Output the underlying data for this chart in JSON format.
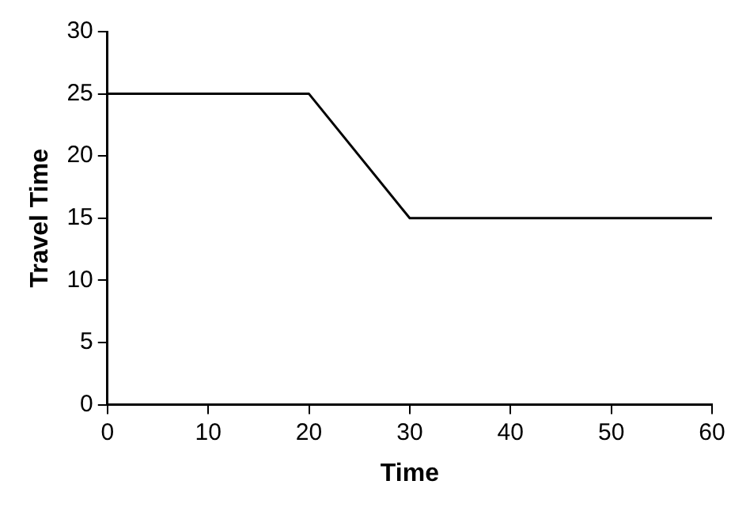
{
  "chart_data": {
    "type": "line",
    "xlabel": "Time",
    "ylabel": "Travel Time",
    "x": [
      0,
      20,
      30,
      60
    ],
    "series": [
      {
        "color": "#000000",
        "values": [
          25,
          25,
          15,
          15
        ]
      }
    ],
    "xlim": [
      0,
      60
    ],
    "xticks": [
      0,
      10,
      20,
      30,
      40,
      50,
      60
    ],
    "ylim": [
      0,
      30
    ],
    "yticks": [
      0,
      5,
      10,
      15,
      20,
      25,
      30
    ],
    "grid": false,
    "legend": false,
    "marker": "none",
    "line_style": "solid"
  }
}
